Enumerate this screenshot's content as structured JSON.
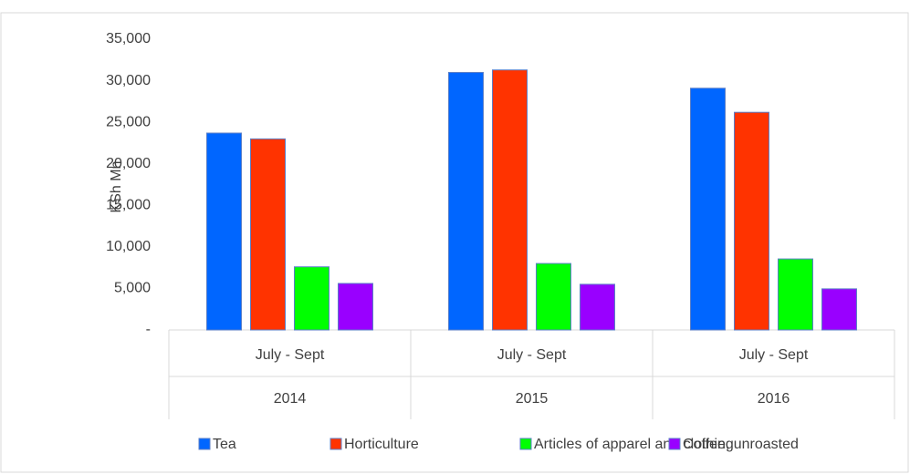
{
  "chart_data": {
    "type": "bar",
    "y_label": "KSh Mn",
    "categories": [
      "July - Sept",
      "July - Sept",
      "July - Sept"
    ],
    "category_groups": [
      "2014",
      "2015",
      "2016"
    ],
    "series": [
      {
        "name": "Tea",
        "color": "#0066ff",
        "values": [
          23700,
          31000,
          29100
        ]
      },
      {
        "name": "Horticulture",
        "color": "#ff3300",
        "values": [
          23000,
          31300,
          26200
        ]
      },
      {
        "name": "Articles of apparel and clothing",
        "color": "#00ff00",
        "values": [
          7600,
          8000,
          8550
        ]
      },
      {
        "name": "Coffee, unroasted",
        "color": "#9900ff",
        "values": [
          5600,
          5500,
          4950
        ]
      }
    ],
    "ylim": [
      0,
      35000
    ],
    "yticks": [
      {
        "value": 0,
        "label": "-"
      },
      {
        "value": 5000,
        "label": "5,000"
      },
      {
        "value": 10000,
        "label": "10,000"
      },
      {
        "value": 15000,
        "label": "15,000"
      },
      {
        "value": 20000,
        "label": "20,000"
      },
      {
        "value": 25000,
        "label": "25,000"
      },
      {
        "value": 30000,
        "label": "30,000"
      },
      {
        "value": 35000,
        "label": "35,000"
      }
    ],
    "grid": false,
    "legend": "bottom"
  }
}
